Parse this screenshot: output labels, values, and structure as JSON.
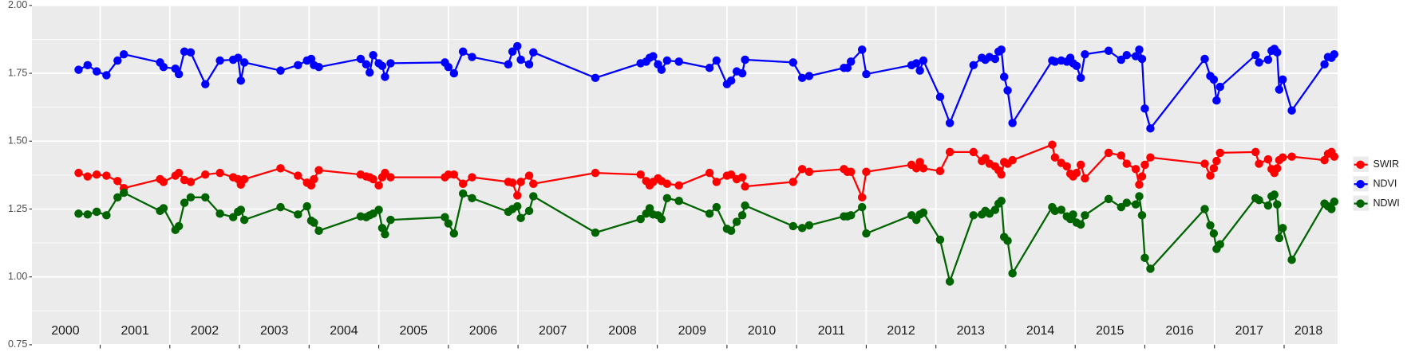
{
  "chart_data": {
    "type": "line",
    "x": [
      2000.69,
      2000.82,
      2000.95,
      2001.09,
      2001.25,
      2001.34,
      2001.86,
      2001.91,
      2002.08,
      2002.13,
      2002.21,
      2002.3,
      2002.51,
      2002.72,
      2002.91,
      2002.98,
      2003.02,
      2003.07,
      2003.59,
      2003.84,
      2003.97,
      2004.03,
      2004.07,
      2004.14,
      2004.74,
      2004.82,
      2004.87,
      2004.92,
      2005.0,
      2005.05,
      2005.09,
      2005.17,
      2005.95,
      2006.0,
      2006.08,
      2006.21,
      2006.34,
      2006.86,
      2006.92,
      2006.99,
      2007.04,
      2007.16,
      2007.22,
      2008.11,
      2008.76,
      2008.84,
      2008.89,
      2008.94,
      2009.01,
      2009.06,
      2009.14,
      2009.31,
      2009.75,
      2009.85,
      2010.0,
      2010.06,
      2010.14,
      2010.22,
      2010.26,
      2010.95,
      2011.08,
      2011.18,
      2011.68,
      2011.73,
      2011.78,
      2011.94,
      2012.0,
      2012.65,
      2012.72,
      2012.77,
      2012.82,
      2013.06,
      2013.2,
      2013.54,
      2013.66,
      2013.71,
      2013.77,
      2013.85,
      2013.9,
      2013.94,
      2013.98,
      2014.03,
      2014.1,
      2014.67,
      2014.71,
      2014.8,
      2014.88,
      2014.93,
      2014.97,
      2015.02,
      2015.08,
      2015.14,
      2015.48,
      2015.66,
      2015.74,
      2015.87,
      2015.92,
      2015.96,
      2016.0,
      2016.08,
      2016.86,
      2016.94,
      2016.99,
      2017.03,
      2017.08,
      2017.59,
      2017.64,
      2017.77,
      2017.82,
      2017.86,
      2017.9,
      2017.93,
      2017.98,
      2018.11,
      2018.58,
      2018.63,
      2018.68,
      2018.72
    ],
    "series": [
      {
        "name": "SWIR",
        "color": "#ff0000",
        "values": [
          1.383,
          1.37,
          1.377,
          1.373,
          1.353,
          1.327,
          1.36,
          1.35,
          1.373,
          1.383,
          1.357,
          1.35,
          1.377,
          1.383,
          1.367,
          1.36,
          1.34,
          1.36,
          1.4,
          1.373,
          1.347,
          1.337,
          1.36,
          1.393,
          1.377,
          1.37,
          1.367,
          1.36,
          1.337,
          1.367,
          1.383,
          1.367,
          1.367,
          1.377,
          1.377,
          1.343,
          1.367,
          1.35,
          1.347,
          1.3,
          1.35,
          1.373,
          1.343,
          1.383,
          1.377,
          1.353,
          1.337,
          1.35,
          1.363,
          1.353,
          1.343,
          1.337,
          1.383,
          1.35,
          1.373,
          1.377,
          1.36,
          1.367,
          1.333,
          1.35,
          1.397,
          1.387,
          1.397,
          1.387,
          1.387,
          1.293,
          1.387,
          1.413,
          1.4,
          1.423,
          1.4,
          1.39,
          1.46,
          1.46,
          1.427,
          1.437,
          1.417,
          1.407,
          1.393,
          1.377,
          1.423,
          1.417,
          1.43,
          1.487,
          1.44,
          1.42,
          1.407,
          1.38,
          1.37,
          1.383,
          1.413,
          1.363,
          1.457,
          1.447,
          1.417,
          1.397,
          1.34,
          1.37,
          1.413,
          1.44,
          1.417,
          1.373,
          1.4,
          1.427,
          1.457,
          1.46,
          1.417,
          1.433,
          1.397,
          1.383,
          1.4,
          1.43,
          1.44,
          1.443,
          1.43,
          1.453,
          1.46,
          1.443
        ]
      },
      {
        "name": "NDVI",
        "color": "#0000ff",
        "values": [
          1.763,
          1.78,
          1.757,
          1.743,
          1.797,
          1.82,
          1.79,
          1.773,
          1.767,
          1.747,
          1.83,
          1.827,
          1.71,
          1.797,
          1.8,
          1.807,
          1.723,
          1.79,
          1.76,
          1.78,
          1.797,
          1.803,
          1.78,
          1.773,
          1.803,
          1.783,
          1.753,
          1.817,
          1.787,
          1.777,
          1.737,
          1.787,
          1.79,
          1.773,
          1.75,
          1.83,
          1.81,
          1.783,
          1.83,
          1.85,
          1.8,
          1.783,
          1.827,
          1.733,
          1.787,
          1.793,
          1.807,
          1.813,
          1.783,
          1.763,
          1.797,
          1.793,
          1.77,
          1.797,
          1.71,
          1.723,
          1.757,
          1.75,
          1.8,
          1.79,
          1.733,
          1.74,
          1.77,
          1.77,
          1.793,
          1.837,
          1.747,
          1.78,
          1.787,
          1.76,
          1.797,
          1.663,
          1.567,
          1.78,
          1.807,
          1.8,
          1.81,
          1.803,
          1.83,
          1.837,
          1.737,
          1.687,
          1.567,
          1.797,
          1.793,
          1.797,
          1.793,
          1.807,
          1.787,
          1.777,
          1.733,
          1.82,
          1.833,
          1.8,
          1.817,
          1.813,
          1.837,
          1.803,
          1.62,
          1.547,
          1.803,
          1.74,
          1.727,
          1.65,
          1.7,
          1.817,
          1.79,
          1.8,
          1.833,
          1.84,
          1.827,
          1.69,
          1.727,
          1.613,
          1.783,
          1.81,
          1.807,
          1.82
        ]
      },
      {
        "name": "NDWI",
        "color": "#006400",
        "values": [
          1.233,
          1.23,
          1.24,
          1.227,
          1.293,
          1.31,
          1.243,
          1.253,
          1.173,
          1.187,
          1.273,
          1.293,
          1.293,
          1.233,
          1.22,
          1.24,
          1.247,
          1.21,
          1.257,
          1.23,
          1.26,
          1.207,
          1.2,
          1.17,
          1.223,
          1.22,
          1.227,
          1.233,
          1.247,
          1.18,
          1.157,
          1.21,
          1.22,
          1.197,
          1.16,
          1.307,
          1.29,
          1.24,
          1.25,
          1.26,
          1.217,
          1.243,
          1.297,
          1.163,
          1.213,
          1.233,
          1.253,
          1.23,
          1.227,
          1.213,
          1.29,
          1.28,
          1.233,
          1.257,
          1.177,
          1.17,
          1.203,
          1.227,
          1.263,
          1.187,
          1.18,
          1.19,
          1.223,
          1.223,
          1.227,
          1.257,
          1.16,
          1.227,
          1.21,
          1.23,
          1.237,
          1.137,
          0.983,
          1.227,
          1.23,
          1.243,
          1.233,
          1.247,
          1.27,
          1.28,
          1.147,
          1.133,
          1.013,
          1.257,
          1.243,
          1.247,
          1.223,
          1.213,
          1.23,
          1.2,
          1.193,
          1.227,
          1.287,
          1.257,
          1.273,
          1.267,
          1.297,
          1.227,
          1.07,
          1.03,
          1.25,
          1.19,
          1.16,
          1.103,
          1.12,
          1.29,
          1.283,
          1.263,
          1.297,
          1.303,
          1.267,
          1.143,
          1.18,
          1.063,
          1.27,
          1.26,
          1.25,
          1.277
        ]
      }
    ],
    "xlim": [
      2000.02,
      2018.77
    ],
    "xticks": [
      2001,
      2002,
      2003,
      2004,
      2005,
      2006,
      2007,
      2008,
      2009,
      2010,
      2011,
      2012,
      2013,
      2014,
      2015,
      2016,
      2017,
      2018
    ],
    "ylim": [
      0.75,
      2.0
    ],
    "yticks": [
      {
        "value": 0.75,
        "label": "0.75"
      },
      {
        "value": 1.0,
        "label": "1.00"
      },
      {
        "value": 1.25,
        "label": "1.25"
      },
      {
        "value": 1.5,
        "label": "1.50"
      },
      {
        "value": 1.75,
        "label": "1.75"
      },
      {
        "value": 2.0,
        "label": "2.00"
      }
    ],
    "annotations": [
      {
        "text": "2000",
        "x": 2000.5,
        "y": 0.8
      },
      {
        "text": "2001",
        "x": 2001.5,
        "y": 0.8
      },
      {
        "text": "2002",
        "x": 2002.5,
        "y": 0.8
      },
      {
        "text": "2003",
        "x": 2003.5,
        "y": 0.8
      },
      {
        "text": "2004",
        "x": 2004.5,
        "y": 0.8
      },
      {
        "text": "2005",
        "x": 2005.5,
        "y": 0.8
      },
      {
        "text": "2006",
        "x": 2006.5,
        "y": 0.8
      },
      {
        "text": "2007",
        "x": 2007.5,
        "y": 0.8
      },
      {
        "text": "2008",
        "x": 2008.5,
        "y": 0.8
      },
      {
        "text": "2009",
        "x": 2009.5,
        "y": 0.8
      },
      {
        "text": "2010",
        "x": 2010.5,
        "y": 0.8
      },
      {
        "text": "2011",
        "x": 2011.5,
        "y": 0.8
      },
      {
        "text": "2012",
        "x": 2012.5,
        "y": 0.8
      },
      {
        "text": "2013",
        "x": 2013.5,
        "y": 0.8
      },
      {
        "text": "2014",
        "x": 2014.5,
        "y": 0.8
      },
      {
        "text": "2015",
        "x": 2015.5,
        "y": 0.8
      },
      {
        "text": "2016",
        "x": 2016.5,
        "y": 0.8
      },
      {
        "text": "2017",
        "x": 2017.5,
        "y": 0.8
      },
      {
        "text": "2018",
        "x": 2018.35,
        "y": 0.8
      }
    ],
    "grid": true,
    "legend": "right"
  }
}
